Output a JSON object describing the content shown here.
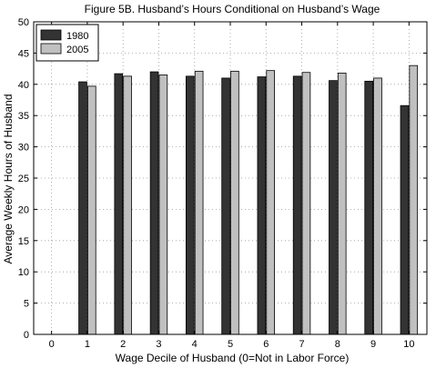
{
  "chart_data": {
    "type": "bar",
    "title": "Figure 5B. Husband’s Hours Conditional on Husband’s Wage",
    "xlabel": "Wage Decile of Husband (0=Not in Labor Force)",
    "ylabel": "Average Weekly Hours of Husband",
    "categories": [
      "0",
      "1",
      "2",
      "3",
      "4",
      "5",
      "6",
      "7",
      "8",
      "9",
      "10"
    ],
    "xlim": [
      -0.5,
      10.5
    ],
    "ylim": [
      0,
      50
    ],
    "yticks": [
      "0",
      "5",
      "10",
      "15",
      "20",
      "25",
      "30",
      "35",
      "40",
      "45",
      "50"
    ],
    "grid": true,
    "legend_position": "top-left",
    "series": [
      {
        "name": "1980",
        "color": "#333333",
        "values": [
          null,
          40.4,
          41.7,
          42.0,
          41.3,
          41.0,
          41.2,
          41.3,
          40.6,
          40.5,
          36.6
        ]
      },
      {
        "name": "2005",
        "color": "#c0c0c0",
        "values": [
          null,
          39.7,
          41.3,
          41.5,
          42.1,
          42.1,
          42.2,
          41.9,
          41.8,
          41.0,
          43.0
        ]
      }
    ]
  }
}
